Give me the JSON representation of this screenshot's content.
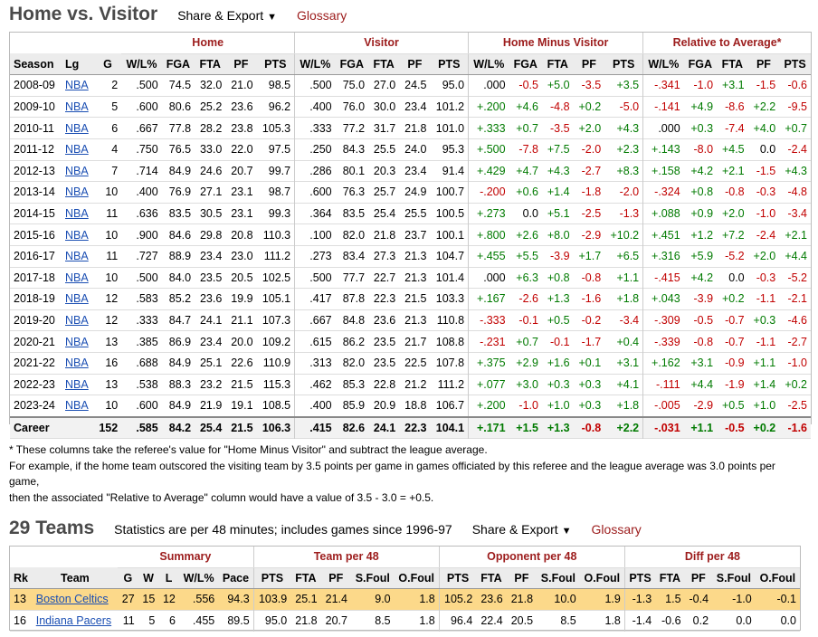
{
  "section1": {
    "title": "Home vs. Visitor",
    "share_label": "Share & Export",
    "share_caret": "▼",
    "glossary_label": "Glossary",
    "groups": [
      "Home",
      "Visitor",
      "Home Minus Visitor",
      "Relative to Average*"
    ],
    "columns": [
      "Season",
      "Lg",
      "G",
      "W/L%",
      "FGA",
      "FTA",
      "PF",
      "PTS",
      "W/L%",
      "FGA",
      "FTA",
      "PF",
      "PTS",
      "W/L%",
      "FGA",
      "FTA",
      "PF",
      "PTS",
      "W/L%",
      "FGA",
      "FTA",
      "PF",
      "PTS"
    ],
    "rows": [
      [
        "2008-09",
        "NBA",
        "2",
        ".500",
        "74.5",
        "32.0",
        "21.0",
        "98.5",
        ".500",
        "75.0",
        "27.0",
        "24.5",
        "95.0",
        ".000",
        "-0.5",
        "+5.0",
        "-3.5",
        "+3.5",
        "-.341",
        "-1.0",
        "+3.1",
        "-1.5",
        "-0.6"
      ],
      [
        "2009-10",
        "NBA",
        "5",
        ".600",
        "80.6",
        "25.2",
        "23.6",
        "96.2",
        ".400",
        "76.0",
        "30.0",
        "23.4",
        "101.2",
        "+.200",
        "+4.6",
        "-4.8",
        "+0.2",
        "-5.0",
        "-.141",
        "+4.9",
        "-8.6",
        "+2.2",
        "-9.5"
      ],
      [
        "2010-11",
        "NBA",
        "6",
        ".667",
        "77.8",
        "28.2",
        "23.8",
        "105.3",
        ".333",
        "77.2",
        "31.7",
        "21.8",
        "101.0",
        "+.333",
        "+0.7",
        "-3.5",
        "+2.0",
        "+4.3",
        ".000",
        "+0.3",
        "-7.4",
        "+4.0",
        "+0.7"
      ],
      [
        "2011-12",
        "NBA",
        "4",
        ".750",
        "76.5",
        "33.0",
        "22.0",
        "97.5",
        ".250",
        "84.3",
        "25.5",
        "24.0",
        "95.3",
        "+.500",
        "-7.8",
        "+7.5",
        "-2.0",
        "+2.3",
        "+.143",
        "-8.0",
        "+4.5",
        "0.0",
        "-2.4"
      ],
      [
        "2012-13",
        "NBA",
        "7",
        ".714",
        "84.9",
        "24.6",
        "20.7",
        "99.7",
        ".286",
        "80.1",
        "20.3",
        "23.4",
        "91.4",
        "+.429",
        "+4.7",
        "+4.3",
        "-2.7",
        "+8.3",
        "+.158",
        "+4.2",
        "+2.1",
        "-1.5",
        "+4.3"
      ],
      [
        "2013-14",
        "NBA",
        "10",
        ".400",
        "76.9",
        "27.1",
        "23.1",
        "98.7",
        ".600",
        "76.3",
        "25.7",
        "24.9",
        "100.7",
        "-.200",
        "+0.6",
        "+1.4",
        "-1.8",
        "-2.0",
        "-.324",
        "+0.8",
        "-0.8",
        "-0.3",
        "-4.8"
      ],
      [
        "2014-15",
        "NBA",
        "11",
        ".636",
        "83.5",
        "30.5",
        "23.1",
        "99.3",
        ".364",
        "83.5",
        "25.4",
        "25.5",
        "100.5",
        "+.273",
        "0.0",
        "+5.1",
        "-2.5",
        "-1.3",
        "+.088",
        "+0.9",
        "+2.0",
        "-1.0",
        "-3.4"
      ],
      [
        "2015-16",
        "NBA",
        "10",
        ".900",
        "84.6",
        "29.8",
        "20.8",
        "110.3",
        ".100",
        "82.0",
        "21.8",
        "23.7",
        "100.1",
        "+.800",
        "+2.6",
        "+8.0",
        "-2.9",
        "+10.2",
        "+.451",
        "+1.2",
        "+7.2",
        "-2.4",
        "+2.1"
      ],
      [
        "2016-17",
        "NBA",
        "11",
        ".727",
        "88.9",
        "23.4",
        "23.0",
        "111.2",
        ".273",
        "83.4",
        "27.3",
        "21.3",
        "104.7",
        "+.455",
        "+5.5",
        "-3.9",
        "+1.7",
        "+6.5",
        "+.316",
        "+5.9",
        "-5.2",
        "+2.0",
        "+4.4"
      ],
      [
        "2017-18",
        "NBA",
        "10",
        ".500",
        "84.0",
        "23.5",
        "20.5",
        "102.5",
        ".500",
        "77.7",
        "22.7",
        "21.3",
        "101.4",
        ".000",
        "+6.3",
        "+0.8",
        "-0.8",
        "+1.1",
        "-.415",
        "+4.2",
        "0.0",
        "-0.3",
        "-5.2"
      ],
      [
        "2018-19",
        "NBA",
        "12",
        ".583",
        "85.2",
        "23.6",
        "19.9",
        "105.1",
        ".417",
        "87.8",
        "22.3",
        "21.5",
        "103.3",
        "+.167",
        "-2.6",
        "+1.3",
        "-1.6",
        "+1.8",
        "+.043",
        "-3.9",
        "+0.2",
        "-1.1",
        "-2.1"
      ],
      [
        "2019-20",
        "NBA",
        "12",
        ".333",
        "84.7",
        "24.1",
        "21.1",
        "107.3",
        ".667",
        "84.8",
        "23.6",
        "21.3",
        "110.8",
        "-.333",
        "-0.1",
        "+0.5",
        "-0.2",
        "-3.4",
        "-.309",
        "-0.5",
        "-0.7",
        "+0.3",
        "-4.6"
      ],
      [
        "2020-21",
        "NBA",
        "13",
        ".385",
        "86.9",
        "23.4",
        "20.0",
        "109.2",
        ".615",
        "86.2",
        "23.5",
        "21.7",
        "108.8",
        "-.231",
        "+0.7",
        "-0.1",
        "-1.7",
        "+0.4",
        "-.339",
        "-0.8",
        "-0.7",
        "-1.1",
        "-2.7"
      ],
      [
        "2021-22",
        "NBA",
        "16",
        ".688",
        "84.9",
        "25.1",
        "22.6",
        "110.9",
        ".313",
        "82.0",
        "23.5",
        "22.5",
        "107.8",
        "+.375",
        "+2.9",
        "+1.6",
        "+0.1",
        "+3.1",
        "+.162",
        "+3.1",
        "-0.9",
        "+1.1",
        "-1.0"
      ],
      [
        "2022-23",
        "NBA",
        "13",
        ".538",
        "88.3",
        "23.2",
        "21.5",
        "115.3",
        ".462",
        "85.3",
        "22.8",
        "21.2",
        "111.2",
        "+.077",
        "+3.0",
        "+0.3",
        "+0.3",
        "+4.1",
        "-.111",
        "+4.4",
        "-1.9",
        "+1.4",
        "+0.2"
      ],
      [
        "2023-24",
        "NBA",
        "10",
        ".600",
        "84.9",
        "21.9",
        "19.1",
        "108.5",
        ".400",
        "85.9",
        "20.9",
        "18.8",
        "106.7",
        "+.200",
        "-1.0",
        "+1.0",
        "+0.3",
        "+1.8",
        "-.005",
        "-2.9",
        "+0.5",
        "+1.0",
        "-2.5"
      ]
    ],
    "career": [
      "Career",
      "",
      "152",
      ".585",
      "84.2",
      "25.4",
      "21.5",
      "106.3",
      ".415",
      "82.6",
      "24.1",
      "22.3",
      "104.1",
      "+.171",
      "+1.5",
      "+1.3",
      "-0.8",
      "+2.2",
      "-.031",
      "+1.1",
      "-0.5",
      "+0.2",
      "-1.6"
    ],
    "footnote_1": "* These columns take the referee's value for \"Home Minus Visitor\" and subtract the league average.",
    "footnote_2": "For example, if the home team outscored the visiting team by 3.5 points per game in games officiated by this referee and the league average was 3.0 points per game,",
    "footnote_3": "then the associated \"Relative to Average\" column would have a value of 3.5 - 3.0 = +0.5."
  },
  "section2": {
    "title": "29 Teams",
    "note": "Statistics are per 48 minutes; includes games since 1996-97",
    "share_label": "Share & Export",
    "share_caret": "▼",
    "glossary_label": "Glossary",
    "groups": [
      "Summary",
      "Team per 48",
      "Opponent per 48",
      "Diff per 48"
    ],
    "columns": [
      "Rk",
      "Team",
      "G",
      "W",
      "L",
      "W/L%",
      "Pace",
      "PTS",
      "FTA",
      "PF",
      "S.Foul",
      "O.Foul",
      "PTS",
      "FTA",
      "PF",
      "S.Foul",
      "O.Foul",
      "PTS",
      "FTA",
      "PF",
      "S.Foul",
      "O.Foul"
    ],
    "rows": [
      [
        "13",
        "Boston Celtics",
        "27",
        "15",
        "12",
        ".556",
        "94.3",
        "103.9",
        "25.1",
        "21.4",
        "9.0",
        "1.8",
        "105.2",
        "23.6",
        "21.8",
        "10.0",
        "1.9",
        "-1.3",
        "1.5",
        "-0.4",
        "-1.0",
        "-0.1"
      ],
      [
        "16",
        "Indiana Pacers",
        "11",
        "5",
        "6",
        ".455",
        "89.5",
        "95.0",
        "21.8",
        "20.7",
        "8.5",
        "1.8",
        "96.4",
        "22.4",
        "20.5",
        "8.5",
        "1.8",
        "-1.4",
        "-0.6",
        "0.2",
        "0.0",
        "0.0"
      ]
    ]
  },
  "colors": {
    "positive": "#007a00",
    "negative": "#c10000",
    "group_header": "#9c1c1c",
    "link": "#1b4fb3",
    "highlight_row": "#fcd98a"
  }
}
